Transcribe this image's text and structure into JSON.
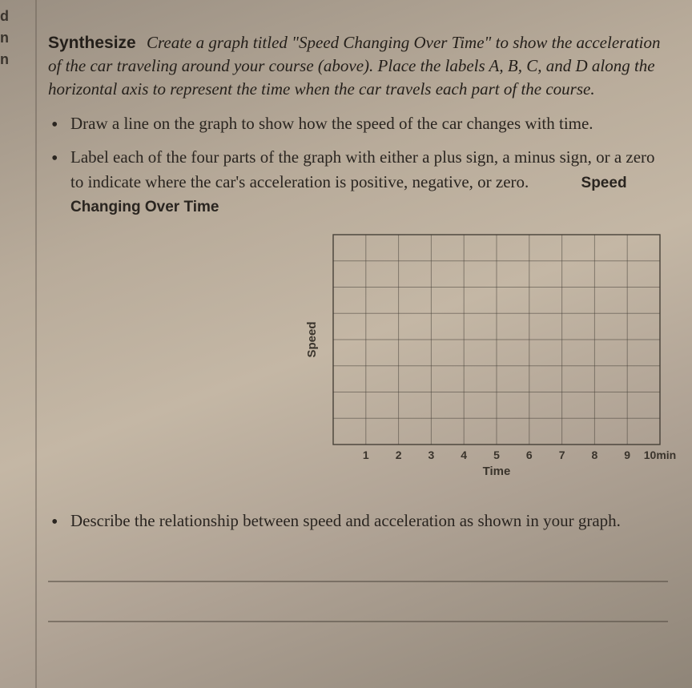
{
  "margin": {
    "l1": "d",
    "l2": "n",
    "l3": "n"
  },
  "intro": {
    "lead": "Synthesize",
    "text": "Create a graph titled \"Speed Changing Over Time\" to show the acceleration of the car traveling around your course (above). Place the labels A, B, C, and D along the horizontal axis to represent the time when the car travels each part of the course."
  },
  "bullets": {
    "b1": "Draw a line on the graph to show how the speed of the car changes with time.",
    "b2_a": "Label each of the four parts of the graph with either a plus sign, a minus sign, or a zero to indicate where the car's acceleration is positive, negative, or zero.",
    "b3": "Describe the relationship between speed and acceleration as shown in your graph."
  },
  "chart": {
    "title": "Speed Changing Over Time",
    "ylabel": "Speed",
    "xlabel": "Time",
    "xticks": [
      "1",
      "2",
      "3",
      "4",
      "5",
      "6",
      "7",
      "8",
      "9",
      "10min"
    ],
    "cols": 10,
    "rows": 8,
    "grid_color": "#4a443c",
    "border_color": "#3a342c",
    "bg": "transparent"
  }
}
